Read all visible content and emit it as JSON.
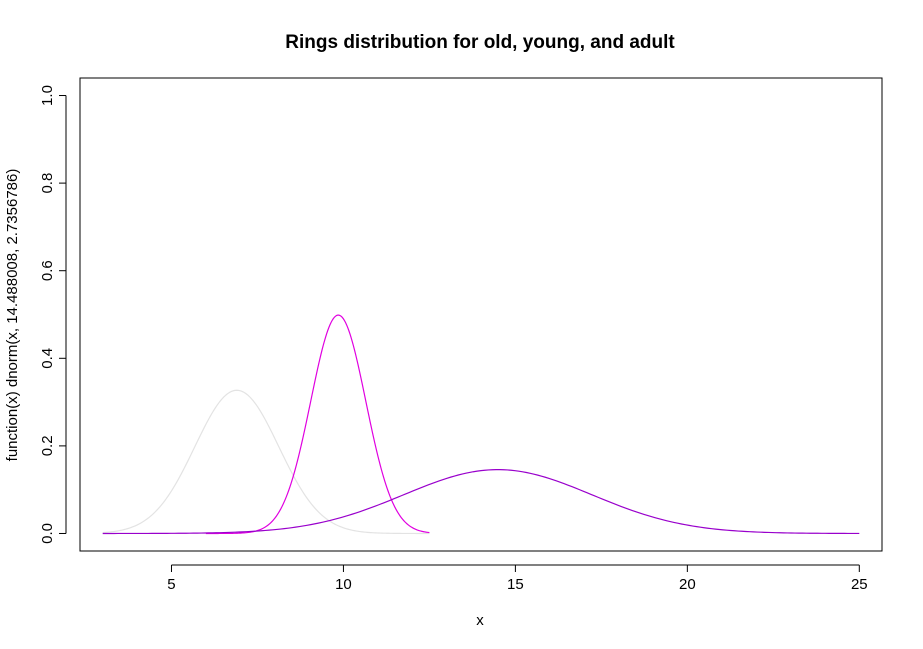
{
  "chart_data": {
    "type": "line",
    "title": "Rings distribution for old, young, and adult",
    "xlabel": "x",
    "ylabel": "function(x) dnorm(x, 14.488008, 2.7356786)",
    "xlim": [
      2.34,
      25.66
    ],
    "ylim": [
      -0.04,
      1.04
    ],
    "x_ticks": [
      5,
      10,
      15,
      20,
      25
    ],
    "y_ticks": [
      0.0,
      0.2,
      0.4,
      0.6,
      0.8,
      1.0
    ],
    "x_tick_labels": [
      "5",
      "10",
      "15",
      "20",
      "25"
    ],
    "y_tick_labels": [
      "0.0",
      "0.2",
      "0.4",
      "0.6",
      "0.8",
      "1.0"
    ],
    "grid": false,
    "box": true,
    "series": [
      {
        "color": "#e3e3e3",
        "dist": "normal",
        "mean": 6.9,
        "sd": 1.22,
        "x_range": [
          3,
          12.5
        ]
      },
      {
        "color": "#e000e0",
        "dist": "normal",
        "mean": 9.85,
        "sd": 0.8,
        "x_range": [
          6,
          12.5
        ]
      },
      {
        "color": "#9900cc",
        "dist": "normal",
        "mean": 14.488008,
        "sd": 2.7356786,
        "x_range": [
          3,
          25
        ]
      }
    ]
  }
}
